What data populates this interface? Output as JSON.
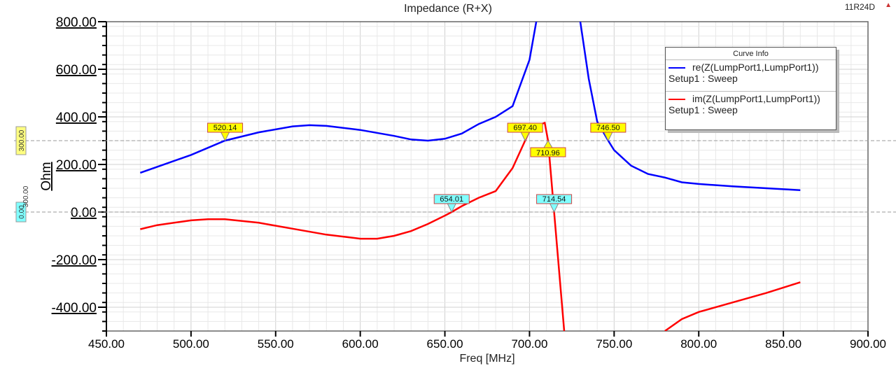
{
  "chart_data": {
    "type": "line",
    "title": "Impedance (R+X)",
    "corner_label": "11R24D",
    "xlabel": "Freq [MHz]",
    "ylabel": "Ohm",
    "xlim": [
      450,
      900
    ],
    "ylim": [
      -500,
      800
    ],
    "xticks": [
      "450.00",
      "500.00",
      "550.00",
      "600.00",
      "650.00",
      "700.00",
      "750.00",
      "800.00",
      "850.00",
      "900.00"
    ],
    "yticks": [
      "800.00",
      "600.00",
      "400.00",
      "200.00",
      "0.00",
      "-200.00",
      "-400.00"
    ],
    "grid": true,
    "legend": {
      "title": "Curve Info",
      "placement": "top-right",
      "entries": [
        {
          "name": "re(Z(LumpPort1,LumpPort1))",
          "sub": "Setup1 : Sweep",
          "color": "#0000ff"
        },
        {
          "name": "im(Z(LumpPort1,LumpPort1))",
          "sub": "Setup1 : Sweep",
          "color": "#ff0000"
        }
      ]
    },
    "series": [
      {
        "name": "re(Z(LumpPort1,LumpPort1))",
        "color": "#0000ff",
        "x": [
          470,
          480,
          500,
          520,
          540,
          560,
          570,
          580,
          600,
          620,
          630,
          640,
          650,
          660,
          670,
          680,
          690,
          700,
          704,
          710,
          720,
          730,
          735,
          740,
          746.5,
          750,
          760,
          770,
          780,
          790,
          800,
          820,
          840,
          860
        ],
        "y": [
          165,
          190,
          240,
          300,
          335,
          360,
          365,
          362,
          345,
          320,
          305,
          300,
          308,
          330,
          370,
          400,
          445,
          640,
          800,
          1400,
          1500,
          800,
          560,
          380,
          300,
          260,
          195,
          160,
          145,
          125,
          118,
          108,
          100,
          92
        ]
      },
      {
        "name": "im(Z(LumpPort1,LumpPort1))",
        "color": "#ff0000",
        "segments": [
          {
            "x": [
              470,
              480,
              500,
              510,
              520,
              540,
              560,
              580,
              600,
              610,
              620,
              630,
              640,
              650,
              654,
              660,
              670,
              680,
              690,
              697.4,
              700,
              705,
              709,
              710.96,
              714.54,
              720.5
            ],
            "y": [
              -72,
              -55,
              -35,
              -30,
              -30,
              -45,
              -70,
              -95,
              -112,
              -112,
              -100,
              -80,
              -50,
              -15,
              0,
              25,
              60,
              88,
              185,
              300,
              340,
              365,
              375,
              300,
              0,
              -500
            ]
          },
          {
            "x": [
              780,
              790,
              800,
              820,
              840,
              860
            ],
            "y": [
              -500,
              -450,
              -420,
              -380,
              -340,
              -295
            ]
          }
        ]
      }
    ],
    "reference_lines": [
      {
        "value": 300,
        "label": "300.00",
        "color": "#ffff80"
      },
      {
        "value": 0,
        "label": "0.00",
        "color": "#80ffff"
      }
    ],
    "side_label": "300.00",
    "markers": [
      {
        "label": "520.14",
        "x": 520.14,
        "y": 300,
        "color": "#ffff00",
        "dir": "down"
      },
      {
        "label": "697.40",
        "x": 697.4,
        "y": 300,
        "color": "#ffff00",
        "dir": "down"
      },
      {
        "label": "710.96",
        "x": 710.96,
        "y": 300,
        "color": "#ffff00",
        "dir": "up"
      },
      {
        "label": "746.50",
        "x": 746.5,
        "y": 300,
        "color": "#ffff00",
        "dir": "down"
      },
      {
        "label": "654.01",
        "x": 654.01,
        "y": 0,
        "color": "#80ffff",
        "dir": "down"
      },
      {
        "label": "714.54",
        "x": 714.54,
        "y": 0,
        "color": "#80ffff",
        "dir": "down"
      }
    ]
  }
}
